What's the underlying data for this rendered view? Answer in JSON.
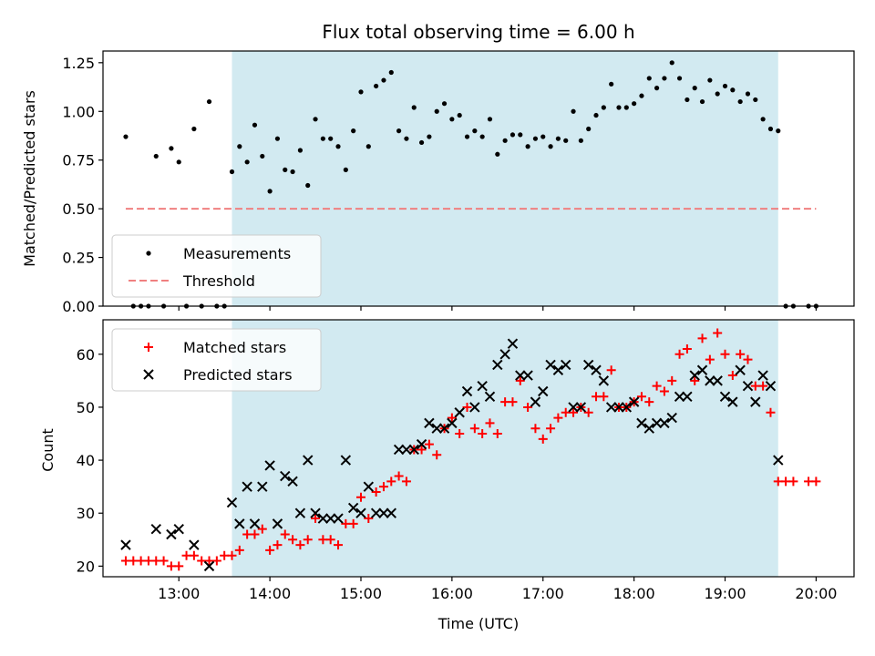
{
  "chart_data": [
    {
      "type": "scatter",
      "title": "Flux total observing time = 6.00 h",
      "ylabel": "Matched/Predicted stars",
      "xlabel": "",
      "xlim": [
        "12:10",
        "20:25"
      ],
      "ylim": [
        0,
        1.31
      ],
      "x_ticks": [
        "13:00",
        "14:00",
        "15:00",
        "16:00",
        "17:00",
        "18:00",
        "19:00",
        "20:00"
      ],
      "y_ticks": [
        "0.00",
        "0.25",
        "0.50",
        "0.75",
        "1.00",
        "1.25"
      ],
      "y_tick_values": [
        0,
        0.25,
        0.5,
        0.75,
        1.0,
        1.25
      ],
      "shaded_span": [
        "13:35",
        "19:35"
      ],
      "legend_position": "lower-left",
      "series": [
        {
          "name": "Measurements",
          "color": "#000000",
          "marker": "dot",
          "x": [
            "12:25",
            "12:30",
            "12:35",
            "12:40",
            "12:45",
            "12:50",
            "12:55",
            "13:00",
            "13:05",
            "13:10",
            "13:15",
            "13:20",
            "13:25",
            "13:30",
            "13:35",
            "13:40",
            "13:45",
            "13:50",
            "13:55",
            "14:00",
            "14:05",
            "14:10",
            "14:15",
            "14:20",
            "14:25",
            "14:30",
            "14:35",
            "14:40",
            "14:45",
            "14:50",
            "14:55",
            "15:00",
            "15:05",
            "15:10",
            "15:15",
            "15:20",
            "15:25",
            "15:30",
            "15:35",
            "15:40",
            "15:45",
            "15:50",
            "15:55",
            "16:00",
            "16:05",
            "16:10",
            "16:15",
            "16:20",
            "16:25",
            "16:30",
            "16:35",
            "16:40",
            "16:45",
            "16:50",
            "16:55",
            "17:00",
            "17:05",
            "17:10",
            "17:15",
            "17:20",
            "17:25",
            "17:30",
            "17:35",
            "17:40",
            "17:45",
            "17:50",
            "17:55",
            "18:00",
            "18:05",
            "18:10",
            "18:15",
            "18:20",
            "18:25",
            "18:30",
            "18:35",
            "18:40",
            "18:45",
            "18:50",
            "18:55",
            "19:00",
            "19:05",
            "19:10",
            "19:15",
            "19:20",
            "19:25",
            "19:30",
            "19:35",
            "19:40",
            "19:45",
            "19:55",
            "20:00"
          ],
          "y": [
            0.87,
            0,
            0,
            0,
            0.77,
            0,
            0.81,
            0.74,
            0,
            0.91,
            0,
            1.05,
            0,
            0,
            0.69,
            0.82,
            0.74,
            0.93,
            0.77,
            0.59,
            0.86,
            0.7,
            0.69,
            0.8,
            0.62,
            0.96,
            0.86,
            0.86,
            0.82,
            0.7,
            0.9,
            1.1,
            0.82,
            1.13,
            1.16,
            1.2,
            0.9,
            0.86,
            1.02,
            0.84,
            0.87,
            1.0,
            1.04,
            0.96,
            0.98,
            0.87,
            0.9,
            0.87,
            0.96,
            0.78,
            0.85,
            0.88,
            0.88,
            0.82,
            0.86,
            0.87,
            0.82,
            0.86,
            0.85,
            1.0,
            0.85,
            0.91,
            0.98,
            1.02,
            1.14,
            1.02,
            1.02,
            1.04,
            1.08,
            1.17,
            1.12,
            1.17,
            1.25,
            1.17,
            1.06,
            1.12,
            1.05,
            1.16,
            1.09,
            1.13,
            1.11,
            1.05,
            1.09,
            1.06,
            0.96,
            0.91,
            0.9,
            0,
            0,
            0,
            0
          ]
        },
        {
          "name": "Threshold",
          "color": "#f08080",
          "style": "dashed",
          "x": [
            "12:25",
            "20:00"
          ],
          "y": [
            0.5,
            0.5
          ]
        }
      ]
    },
    {
      "type": "scatter",
      "title": "",
      "ylabel": "Count",
      "xlabel": "Time (UTC)",
      "xlim": [
        "12:10",
        "20:25"
      ],
      "ylim": [
        18,
        66.5
      ],
      "x_ticks": [
        "13:00",
        "14:00",
        "15:00",
        "16:00",
        "17:00",
        "18:00",
        "19:00",
        "20:00"
      ],
      "y_ticks": [
        "20",
        "30",
        "40",
        "50",
        "60"
      ],
      "y_tick_values": [
        20,
        30,
        40,
        50,
        60
      ],
      "shaded_span": [
        "13:35",
        "19:35"
      ],
      "legend_position": "upper-left",
      "series": [
        {
          "name": "Matched stars",
          "color": "#ff0000",
          "marker": "plus",
          "x": [
            "12:25",
            "12:30",
            "12:35",
            "12:40",
            "12:45",
            "12:50",
            "12:55",
            "13:00",
            "13:05",
            "13:10",
            "13:15",
            "13:20",
            "13:25",
            "13:30",
            "13:35",
            "13:40",
            "13:45",
            "13:50",
            "13:55",
            "14:00",
            "14:05",
            "14:10",
            "14:15",
            "14:20",
            "14:25",
            "14:30",
            "14:35",
            "14:40",
            "14:45",
            "14:50",
            "14:55",
            "15:00",
            "15:05",
            "15:10",
            "15:15",
            "15:20",
            "15:25",
            "15:30",
            "15:35",
            "15:40",
            "15:45",
            "15:50",
            "15:55",
            "16:00",
            "16:05",
            "16:10",
            "16:15",
            "16:20",
            "16:25",
            "16:30",
            "16:35",
            "16:40",
            "16:45",
            "16:50",
            "16:55",
            "17:00",
            "17:05",
            "17:10",
            "17:15",
            "17:20",
            "17:25",
            "17:30",
            "17:35",
            "17:40",
            "17:45",
            "17:50",
            "17:55",
            "18:00",
            "18:05",
            "18:10",
            "18:15",
            "18:20",
            "18:25",
            "18:30",
            "18:35",
            "18:40",
            "18:45",
            "18:50",
            "18:55",
            "19:00",
            "19:05",
            "19:10",
            "19:15",
            "19:20",
            "19:25",
            "19:30",
            "19:35",
            "19:40",
            "19:45",
            "19:55",
            "20:00"
          ],
          "y": [
            21,
            21,
            21,
            21,
            21,
            21,
            20,
            20,
            22,
            22,
            21,
            21,
            21,
            22,
            22,
            23,
            26,
            26,
            27,
            23,
            24,
            26,
            25,
            24,
            25,
            29,
            25,
            25,
            24,
            28,
            28,
            33,
            29,
            34,
            35,
            36,
            37,
            36,
            42,
            42,
            43,
            41,
            46,
            48,
            45,
            50,
            46,
            45,
            47,
            45,
            51,
            51,
            55,
            50,
            46,
            44,
            46,
            48,
            49,
            49,
            50,
            49,
            52,
            52,
            57,
            50,
            50,
            51,
            52,
            51,
            54,
            53,
            55,
            60,
            61,
            55,
            63,
            59,
            64,
            60,
            56,
            60,
            59,
            54,
            54,
            49,
            36,
            36,
            36,
            36,
            36
          ]
        },
        {
          "name": "Predicted stars",
          "color": "#000000",
          "marker": "x",
          "x": [
            "12:25",
            "12:45",
            "12:55",
            "13:00",
            "13:10",
            "13:20",
            "13:35",
            "13:40",
            "13:45",
            "13:50",
            "13:55",
            "14:00",
            "14:05",
            "14:10",
            "14:15",
            "14:20",
            "14:25",
            "14:30",
            "14:35",
            "14:40",
            "14:45",
            "14:50",
            "14:55",
            "15:00",
            "15:05",
            "15:10",
            "15:15",
            "15:20",
            "15:25",
            "15:30",
            "15:35",
            "15:40",
            "15:45",
            "15:50",
            "15:55",
            "16:00",
            "16:05",
            "16:10",
            "16:15",
            "16:20",
            "16:25",
            "16:30",
            "16:35",
            "16:40",
            "16:45",
            "16:50",
            "16:55",
            "17:00",
            "17:05",
            "17:10",
            "17:15",
            "17:20",
            "17:25",
            "17:30",
            "17:35",
            "17:40",
            "17:45",
            "17:50",
            "17:55",
            "18:00",
            "18:05",
            "18:10",
            "18:15",
            "18:20",
            "18:25",
            "18:30",
            "18:35",
            "18:40",
            "18:45",
            "18:50",
            "18:55",
            "19:00",
            "19:05",
            "19:10",
            "19:15",
            "19:20",
            "19:25",
            "19:30",
            "19:35"
          ],
          "y": [
            24,
            27,
            26,
            27,
            24,
            20,
            32,
            28,
            35,
            28,
            35,
            39,
            28,
            37,
            36,
            30,
            40,
            30,
            29,
            29,
            29,
            40,
            31,
            30,
            35,
            30,
            30,
            30,
            42,
            42,
            42,
            43,
            47,
            46,
            46,
            47,
            49,
            53,
            50,
            54,
            52,
            58,
            60,
            62,
            56,
            56,
            51,
            53,
            58,
            57,
            58,
            50,
            50,
            58,
            57,
            55,
            50,
            50,
            50,
            51,
            47,
            46,
            47,
            47,
            48,
            52,
            52,
            56,
            57,
            55,
            55,
            52,
            51,
            57,
            54,
            51,
            56,
            54,
            40
          ]
        }
      ]
    }
  ]
}
